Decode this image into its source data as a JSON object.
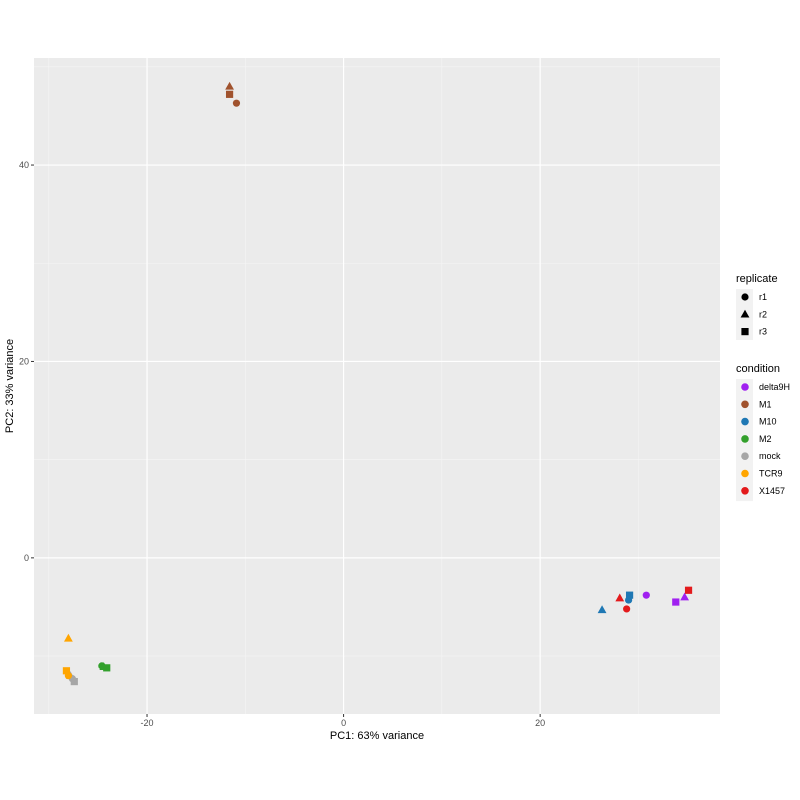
{
  "chart_data": {
    "type": "scatter",
    "xlabel": "PC1: 63% variance",
    "ylabel": "PC2: 33% variance",
    "xlim": [
      -31.5,
      38.3
    ],
    "ylim": [
      -15.9,
      50.9
    ],
    "x_ticks": [
      -20,
      0,
      20
    ],
    "y_ticks": [
      0,
      20,
      40
    ],
    "grid": true,
    "legend_placement": "right",
    "shape_legend": {
      "title": "replicate",
      "entries": [
        {
          "label": "r1",
          "shape": "circle"
        },
        {
          "label": "r2",
          "shape": "triangle"
        },
        {
          "label": "r3",
          "shape": "square"
        }
      ]
    },
    "color_legend": {
      "title": "condition",
      "entries": [
        {
          "label": "delta9H",
          "color": "#a020f0"
        },
        {
          "label": "M1",
          "color": "#a0522d"
        },
        {
          "label": "M10",
          "color": "#1f78b4"
        },
        {
          "label": "M2",
          "color": "#33a02c"
        },
        {
          "label": "mock",
          "color": "#a6a6a6"
        },
        {
          "label": "TCR9",
          "color": "#ffa500"
        },
        {
          "label": "X1457",
          "color": "#e31a1c"
        }
      ]
    },
    "points": [
      {
        "x": -10.9,
        "y": 46.3,
        "condition": "M1",
        "replicate": "r1"
      },
      {
        "x": -11.6,
        "y": 48.0,
        "condition": "M1",
        "replicate": "r2"
      },
      {
        "x": -11.6,
        "y": 47.2,
        "condition": "M1",
        "replicate": "r3"
      },
      {
        "x": 30.8,
        "y": -3.8,
        "condition": "delta9H",
        "replicate": "r1"
      },
      {
        "x": 34.7,
        "y": -4.0,
        "condition": "delta9H",
        "replicate": "r2"
      },
      {
        "x": 33.8,
        "y": -4.5,
        "condition": "delta9H",
        "replicate": "r3"
      },
      {
        "x": 29.0,
        "y": -4.3,
        "condition": "M10",
        "replicate": "r1"
      },
      {
        "x": 26.3,
        "y": -5.3,
        "condition": "M10",
        "replicate": "r2"
      },
      {
        "x": 29.1,
        "y": -3.8,
        "condition": "M10",
        "replicate": "r3"
      },
      {
        "x": -24.6,
        "y": -11.0,
        "condition": "M2",
        "replicate": "r1"
      },
      {
        "x": -24.4,
        "y": -11.1,
        "condition": "M2",
        "replicate": "r2"
      },
      {
        "x": -24.1,
        "y": -11.2,
        "condition": "M2",
        "replicate": "r3"
      },
      {
        "x": -27.6,
        "y": -12.3,
        "condition": "mock",
        "replicate": "r1"
      },
      {
        "x": -27.8,
        "y": -12.0,
        "condition": "mock",
        "replicate": "r2"
      },
      {
        "x": -27.4,
        "y": -12.6,
        "condition": "mock",
        "replicate": "r3"
      },
      {
        "x": -28.0,
        "y": -12.0,
        "condition": "TCR9",
        "replicate": "r1"
      },
      {
        "x": -28.0,
        "y": -8.2,
        "condition": "TCR9",
        "replicate": "r2"
      },
      {
        "x": -28.2,
        "y": -11.5,
        "condition": "TCR9",
        "replicate": "r3"
      },
      {
        "x": 28.8,
        "y": -5.2,
        "condition": "X1457",
        "replicate": "r1"
      },
      {
        "x": 28.1,
        "y": -4.1,
        "condition": "X1457",
        "replicate": "r2"
      },
      {
        "x": 35.1,
        "y": -3.3,
        "condition": "X1457",
        "replicate": "r3"
      }
    ]
  }
}
